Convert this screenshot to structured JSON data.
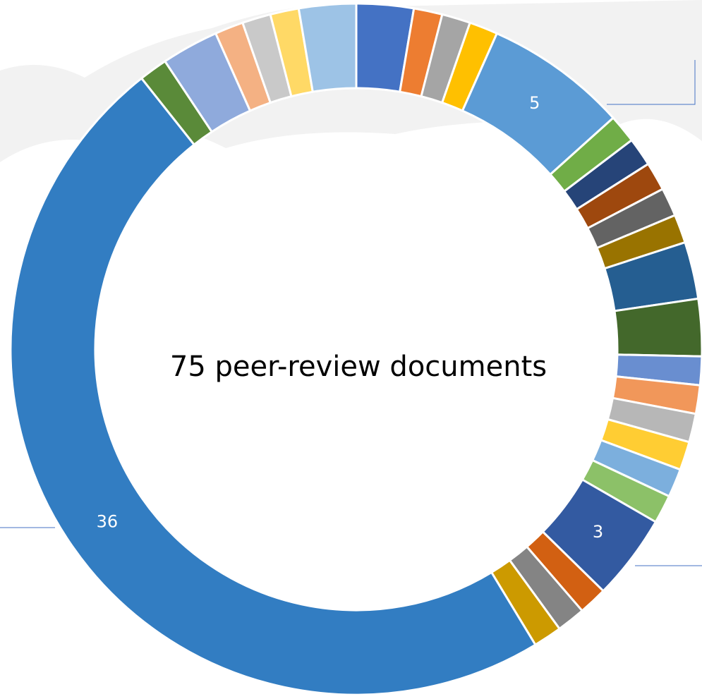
{
  "chart_data": {
    "type": "donut",
    "title": "75 peer-review documents",
    "values": [
      2,
      1,
      1,
      1,
      5,
      1,
      1,
      1,
      1,
      1,
      2,
      2,
      1,
      1,
      1,
      1,
      1,
      1,
      3,
      1,
      1,
      1,
      36,
      1,
      2,
      1,
      1,
      1,
      2
    ],
    "value_labels": [
      null,
      null,
      null,
      null,
      "5",
      null,
      null,
      null,
      null,
      null,
      null,
      null,
      null,
      null,
      null,
      null,
      null,
      null,
      "3",
      null,
      null,
      null,
      "36",
      null,
      null,
      null,
      null,
      null,
      null
    ],
    "colors": [
      "#4472c4",
      "#ed7d31",
      "#a5a5a5",
      "#ffc000",
      "#5b9bd5",
      "#70ad47",
      "#264478",
      "#9e480e",
      "#636363",
      "#997300",
      "#255e91",
      "#43682b",
      "#698ed0",
      "#f1975a",
      "#b7b7b7",
      "#ffcd33",
      "#7cafdd",
      "#8cc168",
      "#335aa1",
      "#d26012",
      "#848484",
      "#cc9a00",
      "#327dc2",
      "#5a8a39",
      "#8faadc",
      "#f4b183",
      "#c9c9c9",
      "#ffd966",
      "#9dc3e6"
    ]
  }
}
